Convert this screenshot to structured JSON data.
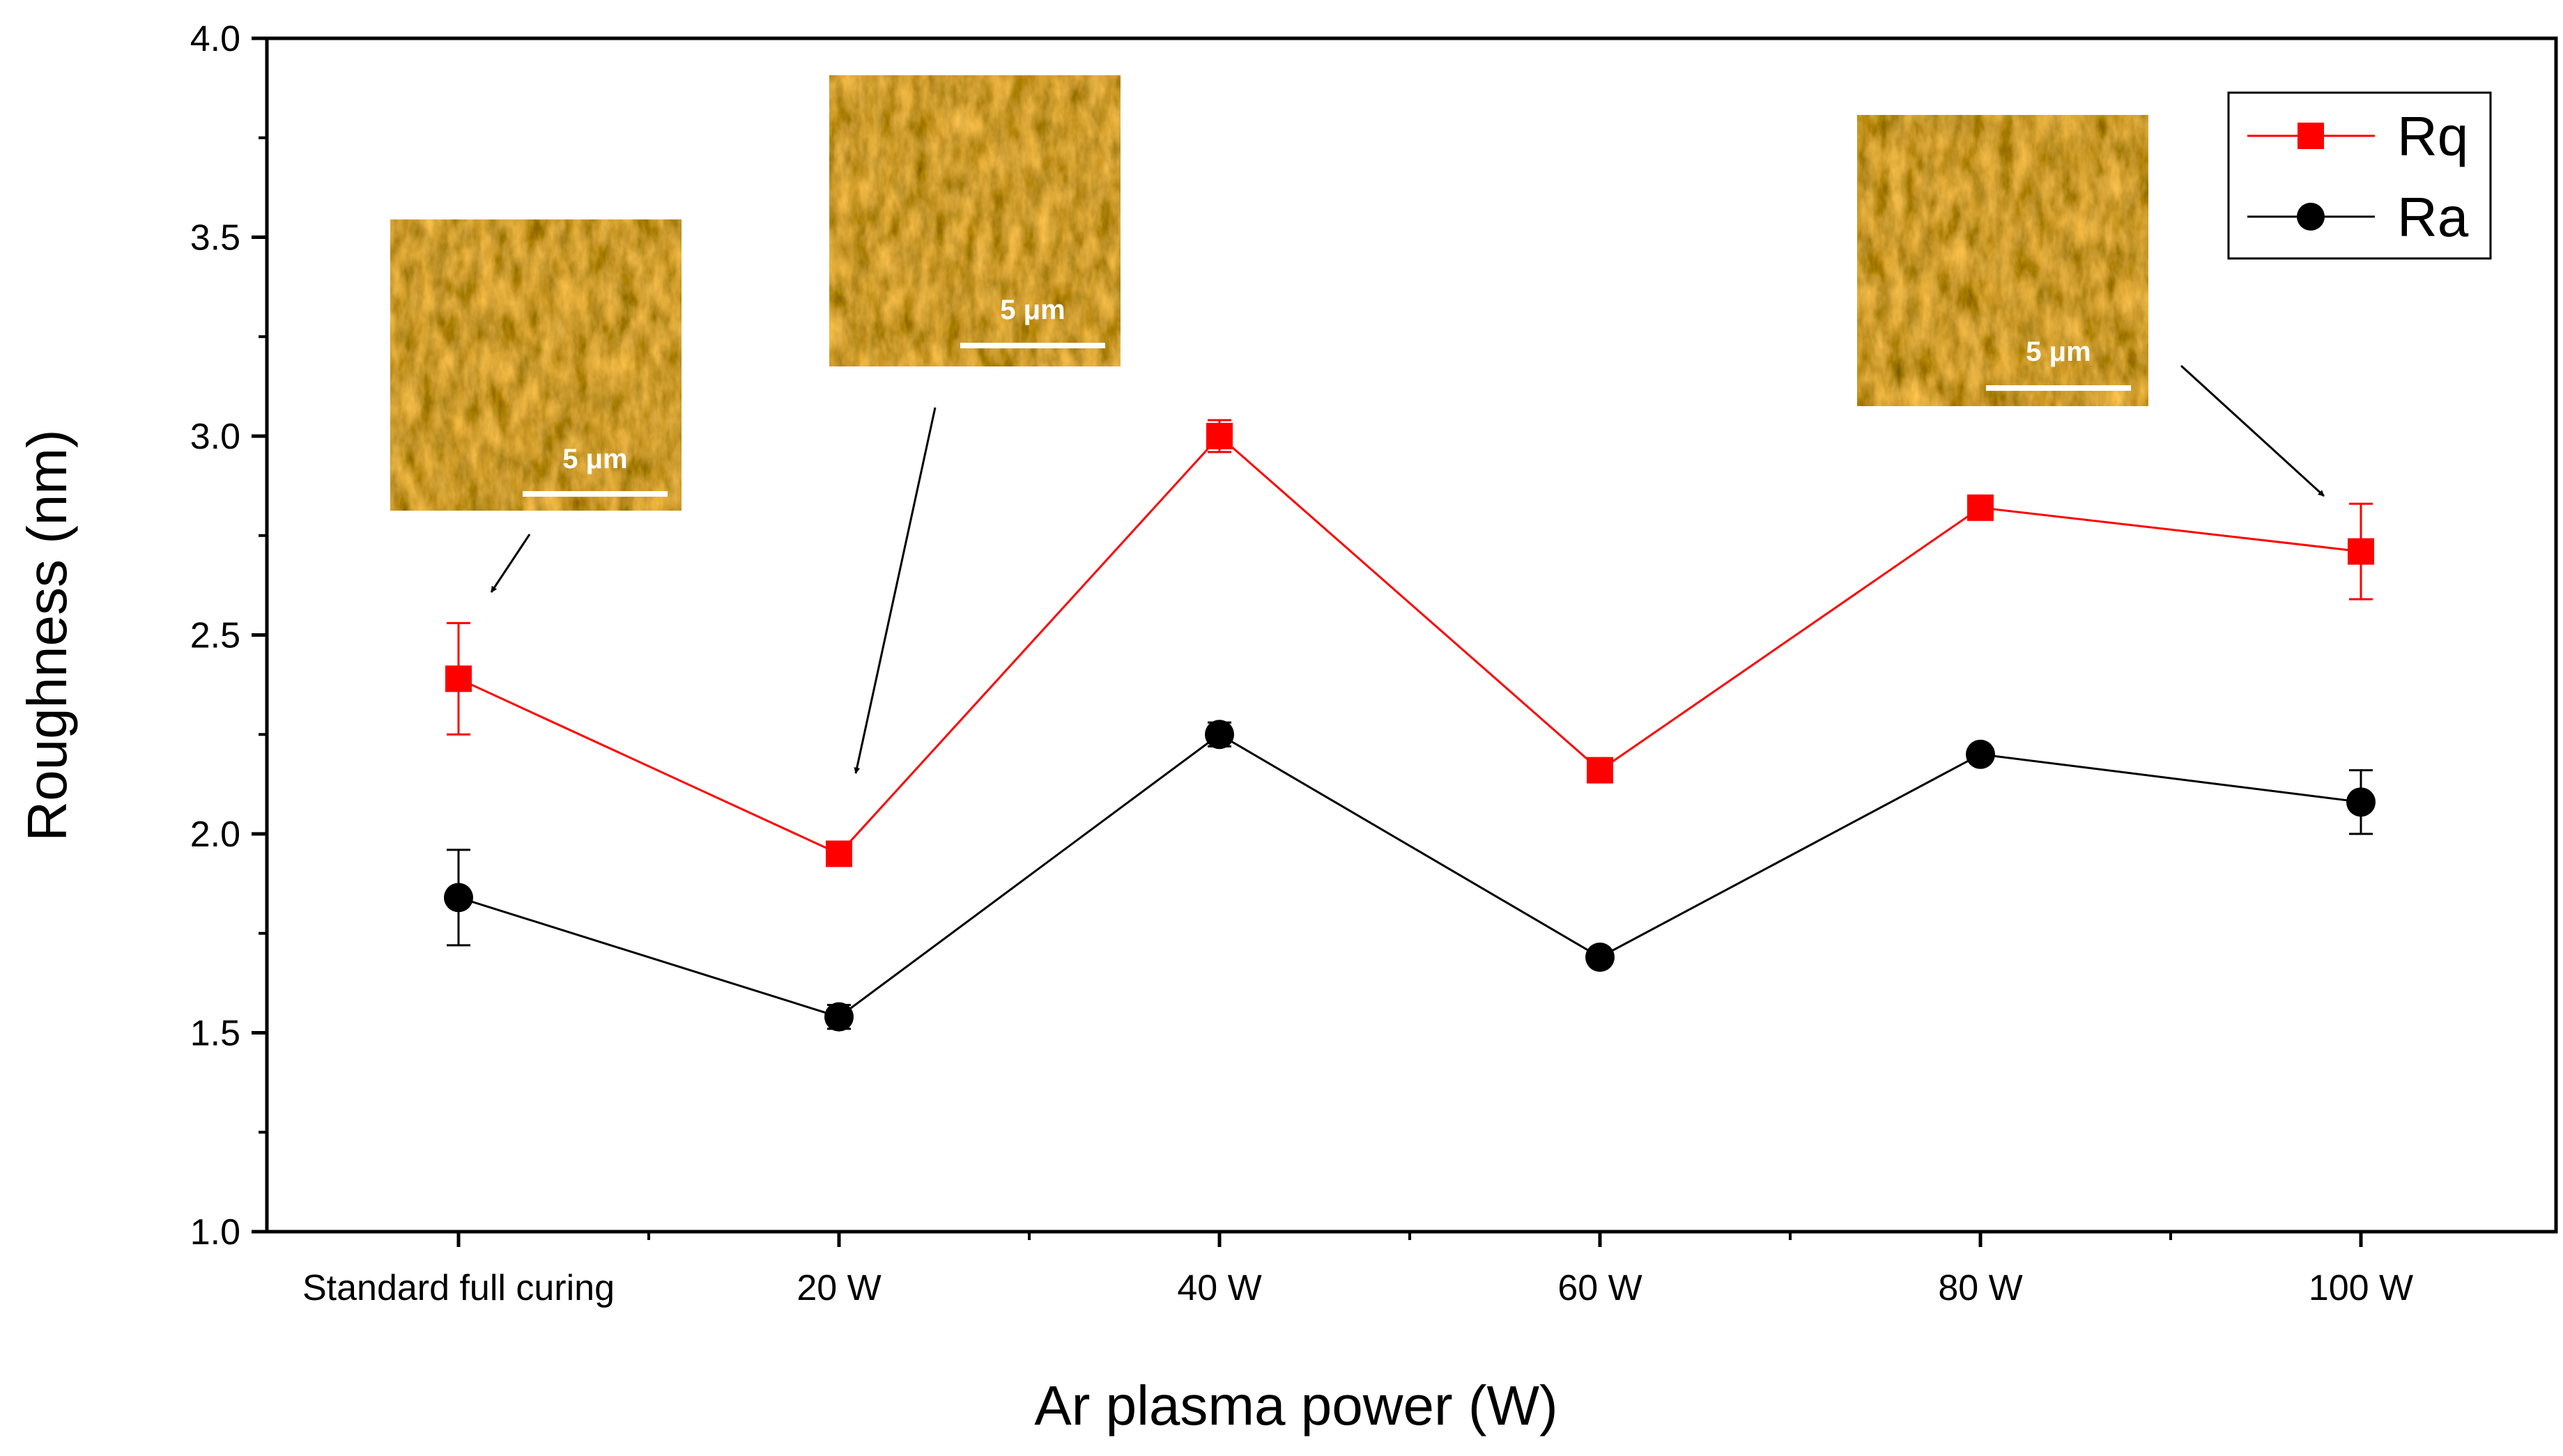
{
  "chart_data": {
    "type": "line",
    "title": "",
    "xlabel": "Ar plasma power (W)",
    "ylabel": "Roughness (nm)",
    "categories": [
      "Standard full curing",
      "20 W",
      "40 W",
      "60 W",
      "80 W",
      "100 W"
    ],
    "ylim": [
      1.0,
      4.0
    ],
    "yticks": [
      "1.0",
      "1.5",
      "2.0",
      "2.5",
      "3.0",
      "3.5",
      "4.0"
    ],
    "series": [
      {
        "name": "Rq",
        "color": "#ff0000",
        "marker": "square",
        "values": [
          2.39,
          1.95,
          3.0,
          2.16,
          2.82,
          2.71
        ],
        "errors": [
          0.14,
          0.03,
          0.04,
          0.02,
          0.02,
          0.12
        ]
      },
      {
        "name": "Ra",
        "color": "#000000",
        "marker": "circle",
        "values": [
          1.84,
          1.54,
          2.25,
          1.69,
          2.2,
          2.08
        ],
        "errors": [
          0.12,
          0.03,
          0.03,
          0.01,
          0.01,
          0.08
        ]
      }
    ],
    "legend_position": "top-right",
    "insets": [
      {
        "scale_bar": "5 μm",
        "points_to": "Standard full curing"
      },
      {
        "scale_bar": "5 μm",
        "points_to": "20 W"
      },
      {
        "scale_bar": "5 μm",
        "points_to": "100 W"
      }
    ]
  }
}
